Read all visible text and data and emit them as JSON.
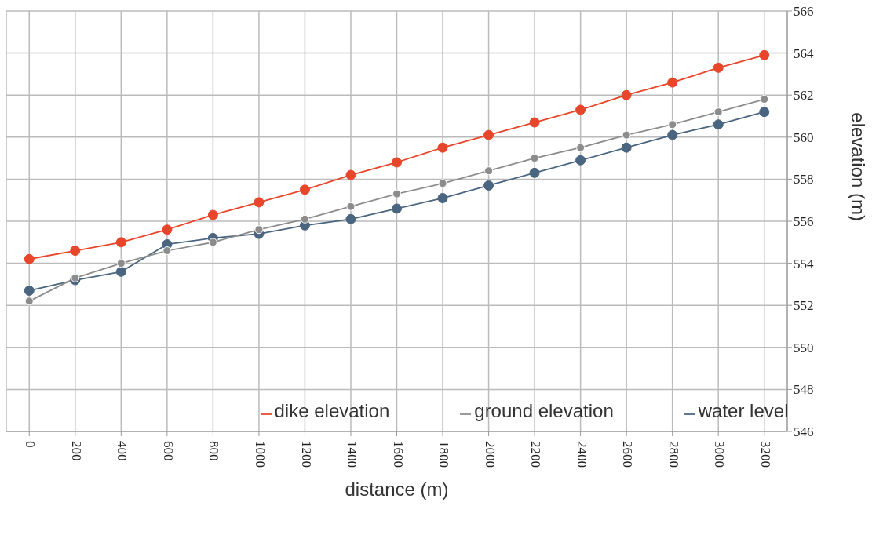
{
  "chart_data": {
    "type": "line",
    "xlabel": "distance (m)",
    "ylabel": "elevation (m)",
    "x": [
      0,
      200,
      400,
      600,
      800,
      1000,
      1200,
      1400,
      1600,
      1800,
      2000,
      2200,
      2400,
      2600,
      2800,
      3000,
      3200
    ],
    "xlim": [
      -100,
      3300
    ],
    "xticks": [
      0,
      200,
      400,
      600,
      800,
      1000,
      1200,
      1400,
      1600,
      1800,
      2000,
      2200,
      2400,
      2600,
      2800,
      3000,
      3200
    ],
    "ylim": [
      546,
      566
    ],
    "yticks": [
      546,
      548,
      550,
      552,
      554,
      556,
      558,
      560,
      562,
      564,
      566
    ],
    "grid": true,
    "legend": "bottom",
    "marker": "circle",
    "line_style": "solid",
    "series": [
      {
        "name": "dike elevation",
        "color": "#e8462a",
        "values": [
          554.2,
          554.6,
          555.0,
          555.6,
          556.3,
          556.9,
          557.5,
          558.2,
          558.8,
          559.5,
          560.1,
          560.7,
          561.3,
          562.0,
          562.6,
          563.3,
          563.9
        ]
      },
      {
        "name": "ground elevation",
        "color": "#8c8c8c",
        "values": [
          552.2,
          553.3,
          554.0,
          554.6,
          555.0,
          555.6,
          556.1,
          556.7,
          557.3,
          557.8,
          558.4,
          559.0,
          559.5,
          560.1,
          560.6,
          561.2,
          561.8
        ]
      },
      {
        "name": "water level",
        "color": "#4a6580",
        "values": [
          552.7,
          553.2,
          553.6,
          554.9,
          555.2,
          555.4,
          555.8,
          556.1,
          556.6,
          557.1,
          557.7,
          558.3,
          558.9,
          559.5,
          560.1,
          560.6,
          561.2
        ]
      }
    ]
  }
}
